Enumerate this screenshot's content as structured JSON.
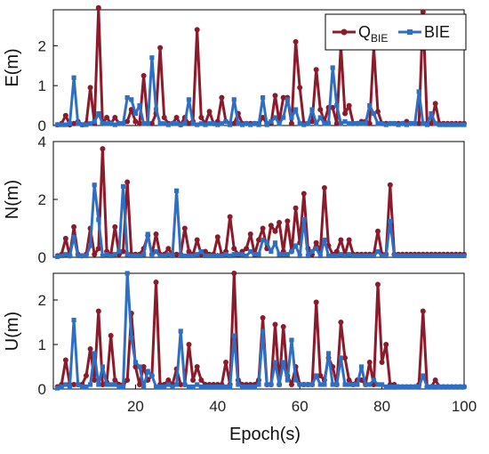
{
  "chart_data": [
    {
      "type": "line",
      "panel": "E",
      "ylabel": "E(m)",
      "ylim": [
        0,
        2.9
      ],
      "yticks": [
        0,
        1,
        2
      ],
      "xlim": [
        0,
        100
      ],
      "grid": false,
      "series": [
        {
          "name": "Q_BIE",
          "color": "#8b1a2b",
          "values": [
            0.02,
            0.05,
            0.25,
            0.02,
            0.05,
            0.1,
            0.02,
            0.05,
            0.95,
            0.05,
            2.95,
            0.05,
            0.2,
            0.05,
            0.2,
            0.05,
            0.05,
            0.1,
            0.4,
            0.1,
            0.05,
            1.25,
            0.05,
            0.05,
            0.3,
            1.95,
            0.2,
            0.05,
            0.05,
            0.2,
            0.02,
            0.2,
            0.05,
            0.1,
            2.4,
            0.2,
            0.05,
            0.35,
            0.05,
            0.1,
            0.7,
            0.1,
            0.05,
            0.05,
            0.3,
            0.05,
            0.05,
            0.05,
            0.05,
            0.05,
            0.2,
            0.05,
            0.05,
            0.75,
            0.1,
            0.7,
            0.7,
            0.05,
            2.1,
            0.95,
            0.05,
            0.05,
            0.1,
            1.4,
            0.4,
            0.1,
            0.45,
            0.45,
            0.05,
            2.0,
            0.3,
            0.5,
            0.05,
            0.05,
            0.1,
            0.1,
            0.05,
            1.95,
            0.35,
            0.05,
            0.05,
            0.05,
            0.05,
            0.05,
            0.05,
            0.1,
            0.05,
            0.05,
            0.05,
            2.85,
            0.05,
            0.05,
            0.55,
            0.05,
            0.05,
            0.05,
            0.05,
            0.05,
            0.05,
            0.05
          ]
        },
        {
          "name": "BIE",
          "color": "#2e6fc4",
          "values": [
            0.02,
            0.02,
            0.02,
            0.05,
            1.2,
            0.05,
            0.02,
            0.02,
            0.05,
            0.1,
            0.3,
            0.05,
            0.05,
            0.05,
            0.02,
            0.05,
            0.05,
            0.7,
            0.65,
            0.3,
            0.5,
            0.05,
            0.05,
            1.7,
            0.4,
            0.05,
            0.05,
            0.02,
            0.05,
            0.05,
            0.02,
            0.05,
            0.65,
            0.05,
            0.02,
            0.05,
            0.02,
            0.05,
            0.05,
            0.02,
            0.05,
            0.1,
            0.02,
            0.65,
            0.05,
            0.02,
            0.05,
            0.02,
            0.05,
            0.02,
            0.7,
            0.02,
            0.1,
            0.2,
            0.05,
            0.2,
            0.65,
            0.2,
            0.4,
            0.05,
            0.02,
            0.05,
            0.4,
            0.05,
            0.2,
            0.05,
            0.05,
            1.45,
            0.5,
            0.05,
            0.1,
            0.05,
            0.05,
            0.05,
            0.05,
            0.05,
            0.5,
            0.3,
            0.05,
            0.05,
            0.02,
            0.05,
            0.05,
            0.02,
            0.05,
            0.02,
            0.05,
            0.05,
            0.85,
            0.05,
            0.02,
            0.3,
            0.05,
            0.02,
            0.02,
            0.02,
            0.02,
            0.02,
            0.02,
            0.02
          ]
        }
      ]
    },
    {
      "type": "line",
      "panel": "N",
      "ylabel": "N(m)",
      "ylim": [
        0,
        4
      ],
      "yticks": [
        0,
        2,
        4
      ],
      "xlim": [
        0,
        100
      ],
      "grid": false,
      "series": [
        {
          "name": "Q_BIE",
          "color": "#8b1a2b",
          "values": [
            0.05,
            0.1,
            0.65,
            0.05,
            1.05,
            0.1,
            0.05,
            0.1,
            1.0,
            0.1,
            0.3,
            3.75,
            0.2,
            0.1,
            1.05,
            0.1,
            0.2,
            2.6,
            0.1,
            0.1,
            0.1,
            0.3,
            0.75,
            0.1,
            0.8,
            0.1,
            0.1,
            0.3,
            0.1,
            0.1,
            0.1,
            1.0,
            0.2,
            0.1,
            0.6,
            0.1,
            0.2,
            0.1,
            0.1,
            0.7,
            0.1,
            0.2,
            1.4,
            0.3,
            0.1,
            0.2,
            0.3,
            0.8,
            0.1,
            0.6,
            1.0,
            0.3,
            1.1,
            0.9,
            1.2,
            0.2,
            1.25,
            0.2,
            1.7,
            0.5,
            2.2,
            0.3,
            0.1,
            0.5,
            0.2,
            2.4,
            0.4,
            0.1,
            0.2,
            0.6,
            0.1,
            0.6,
            0.1,
            0.1,
            0.1,
            0.1,
            0.1,
            0.1,
            0.9,
            0.1,
            0.1,
            2.5,
            0.1,
            0.1,
            0.1,
            0.1,
            0.1,
            0.1,
            0.1,
            0.1,
            0.1,
            0.1,
            0.1,
            0.1,
            0.1,
            0.1,
            0.1,
            0.1,
            0.1,
            0.1
          ]
        },
        {
          "name": "BIE",
          "color": "#2e6fc4",
          "values": [
            0.02,
            0.05,
            0.1,
            0.05,
            0.7,
            0.05,
            0.05,
            0.05,
            0.4,
            2.5,
            1.3,
            0.05,
            0.1,
            0.05,
            0.1,
            0.2,
            2.45,
            0.1,
            0.05,
            0.05,
            0.05,
            0.1,
            0.8,
            0.05,
            0.2,
            0.05,
            0.05,
            0.1,
            0.05,
            2.3,
            0.05,
            0.05,
            0.05,
            0.05,
            0.1,
            0.2,
            0.05,
            0.05,
            0.05,
            0.05,
            0.05,
            0.1,
            0.05,
            0.1,
            0.1,
            0.1,
            0.05,
            0.2,
            0.1,
            0.1,
            0.6,
            0.5,
            0.2,
            0.5,
            0.1,
            0.1,
            0.1,
            0.2,
            0.4,
            0.05,
            1.3,
            0.05,
            0.2,
            0.3,
            0.05,
            0.6,
            0.05,
            0.05,
            0.05,
            0.1,
            0.05,
            0.1,
            0.05,
            0.05,
            0.05,
            0.05,
            0.05,
            0.05,
            0.2,
            0.05,
            0.05,
            1.25,
            0.05,
            0.05,
            0.05,
            0.05,
            0.05,
            0.05,
            0.05,
            0.05,
            0.05,
            0.05,
            0.05,
            0.05,
            0.05,
            0.05,
            0.05,
            0.05,
            0.05,
            0.05
          ]
        }
      ]
    },
    {
      "type": "line",
      "panel": "U",
      "ylabel": "U(m)",
      "ylim": [
        0,
        2.6
      ],
      "yticks": [
        0,
        1,
        2
      ],
      "xlim": [
        0,
        100
      ],
      "xlabel": "Epoch(s)",
      "xticks": [
        20,
        40,
        60,
        80,
        100
      ],
      "grid": false,
      "series": [
        {
          "name": "Q_BIE",
          "color": "#8b1a2b",
          "values": [
            0.05,
            0.1,
            0.65,
            0.1,
            0.1,
            0.1,
            0.1,
            0.3,
            0.9,
            0.2,
            1.75,
            0.1,
            0.15,
            1.2,
            0.2,
            0.1,
            0.1,
            0.2,
            1.7,
            0.5,
            0.1,
            0.5,
            0.2,
            0.3,
            2.4,
            0.1,
            0.1,
            0.2,
            0.1,
            0.45,
            0.1,
            0.1,
            1.0,
            0.2,
            0.5,
            0.2,
            0.1,
            0.1,
            0.1,
            0.1,
            0.1,
            0.6,
            0.1,
            2.6,
            0.2,
            0.1,
            0.1,
            0.1,
            0.1,
            0.2,
            1.6,
            0.1,
            0.1,
            1.45,
            0.1,
            1.4,
            0.3,
            0.1,
            0.5,
            0.1,
            0.1,
            0.1,
            0.1,
            1.95,
            0.3,
            0.2,
            0.7,
            0.5,
            0.1,
            1.5,
            0.7,
            0.2,
            0.1,
            0.2,
            0.2,
            0.1,
            0.6,
            0.1,
            2.35,
            0.6,
            1.0,
            0.1,
            0.1,
            0.05,
            0.05,
            0.05,
            0.05,
            0.05,
            0.1,
            1.75,
            0.05,
            0.05,
            0.2,
            0.05,
            0.05,
            0.05,
            0.05,
            0.05,
            0.05,
            0.05
          ]
        },
        {
          "name": "BIE",
          "color": "#2e6fc4",
          "values": [
            0.02,
            0.05,
            0.1,
            0.05,
            1.55,
            0.1,
            0.05,
            0.05,
            0.1,
            0.8,
            0.1,
            0.5,
            0.1,
            0.1,
            0.1,
            0.05,
            0.05,
            2.6,
            1.15,
            0.6,
            0.5,
            0.05,
            0.4,
            0.3,
            0.05,
            0.05,
            0.05,
            0.1,
            0.05,
            0.1,
            1.3,
            0.1,
            0.05,
            0.05,
            0.1,
            0.05,
            0.05,
            0.05,
            0.05,
            0.05,
            0.05,
            0.05,
            0.05,
            1.2,
            0.1,
            0.05,
            0.05,
            0.05,
            0.05,
            0.1,
            1.3,
            0.1,
            0.1,
            0.6,
            0.1,
            0.6,
            0.2,
            1.1,
            0.2,
            0.1,
            0.1,
            0.1,
            0.1,
            0.3,
            0.1,
            0.1,
            0.8,
            0.1,
            0.1,
            0.7,
            0.1,
            0.1,
            0.1,
            0.1,
            0.5,
            0.1,
            0.1,
            0.2,
            0.1,
            0.1,
            0.05,
            0.05,
            0.05,
            0.05,
            0.05,
            0.05,
            0.05,
            0.05,
            0.05,
            0.3,
            0.05,
            0.05,
            0.05,
            0.05,
            0.05,
            0.05,
            0.05,
            0.05,
            0.05,
            0.05
          ]
        }
      ]
    }
  ],
  "legend": {
    "placement": "top-right",
    "items": [
      {
        "label": "Q",
        "subscript": "BIE",
        "color": "#8b1a2b",
        "marker": "circle"
      },
      {
        "label": "BIE",
        "subscript": "",
        "color": "#2e6fc4",
        "marker": "square"
      }
    ]
  }
}
